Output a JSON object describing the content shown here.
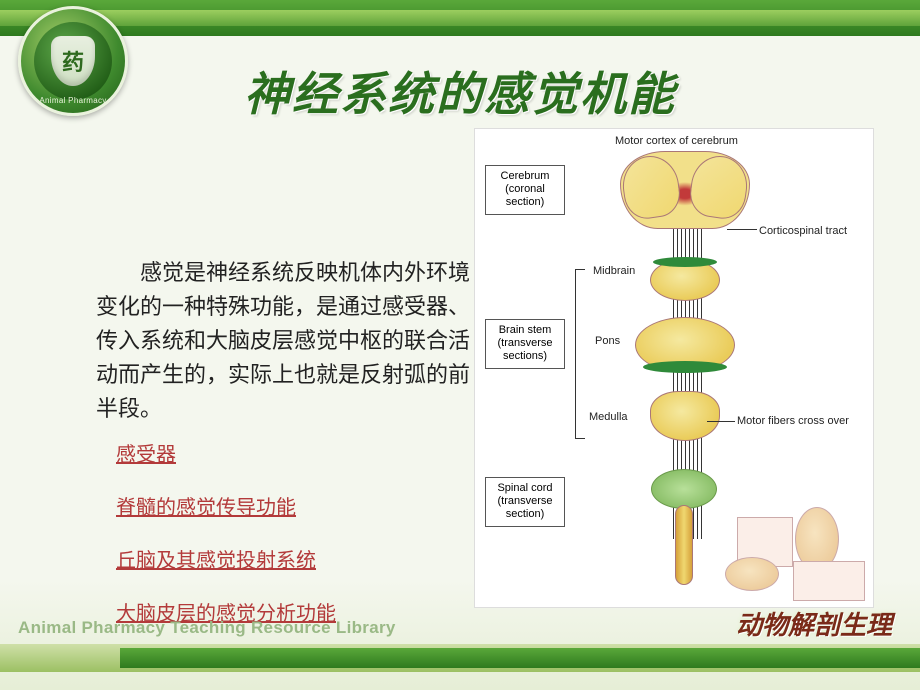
{
  "logo": {
    "glyph": "药",
    "ring_en": "Animal  Pharmacy"
  },
  "title": "神经系统的感觉机能",
  "paragraph": "感觉是神经系统反映机体内外环境变化的一种特殊功能，是通过感受器、传入系统和大脑皮层感觉中枢的联合活动而产生的，实际上也就是反射弧的前半段。",
  "links": [
    "感受器",
    "脊髓的感觉传导功能",
    "丘脑及其感觉投射系统",
    "大脑皮层的感觉分析功能"
  ],
  "diagram": {
    "top_label": "Motor cortex of cerebrum",
    "boxes": {
      "cerebrum": "Cerebrum\n(coronal\nsection)",
      "brainstem": "Brain stem\n(transverse\nsections)",
      "spinal": "Spinal cord\n(transverse\nsection)"
    },
    "side_labels": {
      "corticospinal": "Corticospinal tract",
      "midbrain": "Midbrain",
      "pons": "Pons",
      "medulla": "Medulla",
      "crossover": "Motor fibers cross over"
    }
  },
  "footer": {
    "left_en": "Animal Pharmacy Teaching Resource Library",
    "right_zh": "动物解剖生理"
  },
  "colors": {
    "green_dark": "#2e7a1e",
    "green_mid": "#5aa83a",
    "link_red": "#b33a3a",
    "footer_brown": "#7a2a18"
  }
}
